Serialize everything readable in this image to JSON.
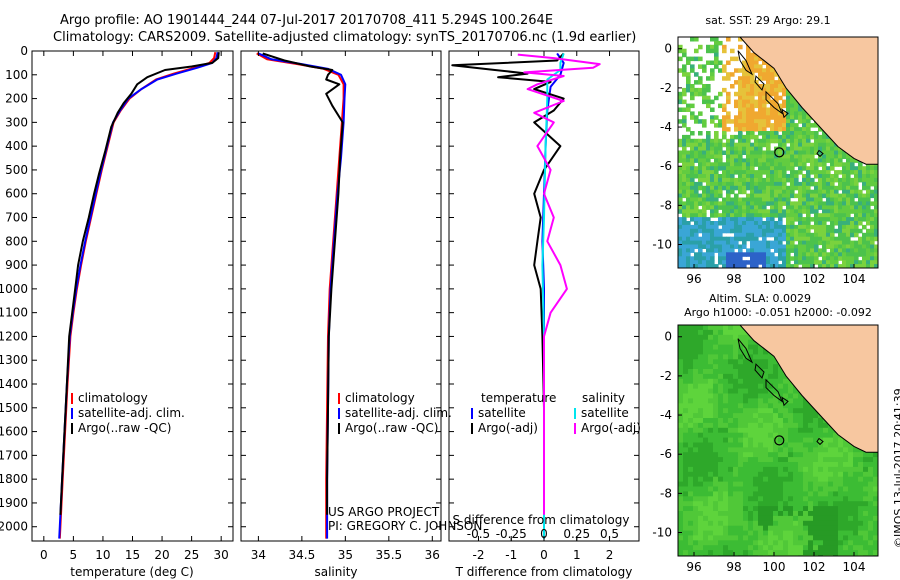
{
  "header": {
    "line1": "Argo profile: AO 1901444_244 07-Jul-2017 20170708_411 5.294S 100.264E",
    "line2": "Climatology: CARS2009. Satellite-adjusted climatology: synTS_20170706.nc (1.9d earlier)"
  },
  "colors": {
    "climatology": "#ff0000",
    "satellite": "#0000ff",
    "argo": "#000000",
    "sal_satellite": "#00e5ee",
    "sal_argo": "#ff00ff",
    "land": "#f7c7a0"
  },
  "chart_data": [
    {
      "type": "line",
      "name": "temperature-profile",
      "xlabel": "temperature (deg C)",
      "ylabel": "",
      "xlim": [
        -2,
        32
      ],
      "ylim": [
        2060,
        0
      ],
      "xticks": [
        0,
        5,
        10,
        15,
        20,
        25,
        30
      ],
      "yticks": [
        0,
        100,
        200,
        300,
        400,
        500,
        600,
        700,
        800,
        900,
        1000,
        1100,
        1200,
        1300,
        1400,
        1500,
        1600,
        1700,
        1800,
        1900,
        2000
      ],
      "legend": [
        "climatology",
        "satellite-adj. clim.",
        "Argo(..raw -QC)"
      ],
      "series": [
        {
          "name": "climatology",
          "points": [
            [
              29.0,
              5
            ],
            [
              28.8,
              30
            ],
            [
              28.0,
              50
            ],
            [
              25.5,
              70
            ],
            [
              22.0,
              95
            ],
            [
              19.0,
              120
            ],
            [
              16.5,
              160
            ],
            [
              14.5,
              200
            ],
            [
              13.0,
              250
            ],
            [
              11.8,
              300
            ],
            [
              10.8,
              400
            ],
            [
              9.8,
              500
            ],
            [
              8.9,
              600
            ],
            [
              8.0,
              700
            ],
            [
              7.1,
              800
            ],
            [
              6.3,
              900
            ],
            [
              5.6,
              1000
            ],
            [
              5.0,
              1100
            ],
            [
              4.5,
              1200
            ],
            [
              4.0,
              1400
            ],
            [
              3.6,
              1600
            ],
            [
              3.2,
              1800
            ],
            [
              2.8,
              2000
            ],
            [
              2.7,
              2050
            ]
          ]
        },
        {
          "name": "satellite",
          "points": [
            [
              29.4,
              5
            ],
            [
              29.2,
              30
            ],
            [
              28.5,
              50
            ],
            [
              26.0,
              70
            ],
            [
              22.5,
              95
            ],
            [
              19.2,
              120
            ],
            [
              16.5,
              160
            ],
            [
              14.3,
              200
            ],
            [
              12.9,
              250
            ],
            [
              11.7,
              300
            ],
            [
              10.7,
              400
            ],
            [
              9.7,
              500
            ],
            [
              8.8,
              600
            ],
            [
              7.9,
              700
            ],
            [
              7.0,
              800
            ],
            [
              6.2,
              900
            ],
            [
              5.5,
              1000
            ],
            [
              4.9,
              1100
            ],
            [
              4.4,
              1200
            ],
            [
              3.9,
              1400
            ],
            [
              3.5,
              1600
            ],
            [
              3.1,
              1800
            ],
            [
              2.7,
              2000
            ],
            [
              2.6,
              2050
            ]
          ]
        },
        {
          "name": "argo",
          "points": [
            [
              29.6,
              5
            ],
            [
              29.5,
              30
            ],
            [
              28.5,
              50
            ],
            [
              25.0,
              65
            ],
            [
              20.5,
              80
            ],
            [
              17.5,
              110
            ],
            [
              15.8,
              140
            ],
            [
              14.8,
              180
            ],
            [
              13.5,
              220
            ],
            [
              12.5,
              260
            ],
            [
              11.4,
              320
            ],
            [
              10.4,
              420
            ],
            [
              9.3,
              520
            ],
            [
              8.5,
              600
            ],
            [
              7.6,
              700
            ],
            [
              6.6,
              800
            ],
            [
              5.8,
              900
            ],
            [
              5.3,
              1000
            ],
            [
              4.8,
              1100
            ],
            [
              4.3,
              1200
            ],
            [
              3.9,
              1400
            ],
            [
              3.5,
              1600
            ],
            [
              3.1,
              1800
            ],
            [
              2.8,
              1950
            ]
          ]
        }
      ]
    },
    {
      "type": "line",
      "name": "salinity-profile",
      "xlabel": "salinity",
      "xlim": [
        33.8,
        36.1
      ],
      "ylim": [
        2060,
        0
      ],
      "xticks": [
        34,
        34.5,
        35,
        35.5,
        36
      ],
      "legend": [
        "climatology",
        "satellite-adj. clim.",
        "Argo(..raw -QC)"
      ],
      "series": [
        {
          "name": "climatology",
          "points": [
            [
              33.98,
              10
            ],
            [
              34.1,
              35
            ],
            [
              34.45,
              55
            ],
            [
              34.75,
              75
            ],
            [
              34.92,
              100
            ],
            [
              34.98,
              140
            ],
            [
              34.98,
              200
            ],
            [
              34.96,
              300
            ],
            [
              34.93,
              450
            ],
            [
              34.9,
              600
            ],
            [
              34.86,
              800
            ],
            [
              34.82,
              1000
            ],
            [
              34.8,
              1200
            ],
            [
              34.79,
              1500
            ],
            [
              34.78,
              1800
            ],
            [
              34.78,
              2050
            ]
          ]
        },
        {
          "name": "satellite",
          "points": [
            [
              34.0,
              10
            ],
            [
              34.15,
              35
            ],
            [
              34.5,
              55
            ],
            [
              34.8,
              75
            ],
            [
              34.95,
              100
            ],
            [
              35.0,
              140
            ],
            [
              34.99,
              200
            ],
            [
              34.98,
              300
            ],
            [
              34.95,
              450
            ],
            [
              34.91,
              600
            ],
            [
              34.87,
              800
            ],
            [
              34.83,
              1000
            ],
            [
              34.81,
              1200
            ],
            [
              34.8,
              1500
            ],
            [
              34.79,
              1800
            ],
            [
              34.79,
              2050
            ]
          ]
        },
        {
          "name": "argo",
          "points": [
            [
              34.05,
              10
            ],
            [
              34.3,
              40
            ],
            [
              34.6,
              65
            ],
            [
              34.85,
              80
            ],
            [
              34.8,
              100
            ],
            [
              34.78,
              120
            ],
            [
              34.93,
              140
            ],
            [
              34.78,
              180
            ],
            [
              34.85,
              230
            ],
            [
              34.97,
              300
            ],
            [
              34.94,
              450
            ],
            [
              34.92,
              600
            ],
            [
              34.88,
              800
            ],
            [
              34.84,
              1000
            ],
            [
              34.81,
              1200
            ],
            [
              34.8,
              1500
            ],
            [
              34.79,
              1800
            ],
            [
              34.79,
              1950
            ]
          ]
        }
      ],
      "annotations": [
        "US ARGO PROJECT",
        "PI: GREGORY C. JOHNSON"
      ]
    },
    {
      "type": "line",
      "name": "difference-from-climatology",
      "xlabel": "T difference from climatology",
      "x2label": "S difference from climatology",
      "xlim": [
        -2.9,
        2.9
      ],
      "ylim": [
        2060,
        0
      ],
      "xticks": [
        -2,
        -1,
        0,
        1,
        2
      ],
      "x2ticks": [
        -0.5,
        -0.25,
        0,
        0.25,
        0.5
      ],
      "x2ticklabels": [
        "-0.5",
        "-0.25",
        "0",
        "0.25",
        "0.5"
      ],
      "legend_temperature_title": "temperature",
      "legend_salinity_title": "salinity",
      "legend_labels": [
        "satellite",
        "Argo(-adj)",
        "satellite",
        "Argo(-adj)"
      ],
      "series": [
        {
          "name": "T satellite",
          "points": [
            [
              0.4,
              10
            ],
            [
              0.6,
              50
            ],
            [
              0.5,
              100
            ],
            [
              0.2,
              150
            ],
            [
              0.1,
              250
            ],
            [
              0.05,
              400
            ],
            [
              0.0,
              600
            ],
            [
              -0.05,
              800
            ],
            [
              0.0,
              1000
            ],
            [
              0.0,
              1500
            ],
            [
              0.0,
              2050
            ]
          ]
        },
        {
          "name": "T argo",
          "points": [
            [
              0.6,
              10
            ],
            [
              0.4,
              40
            ],
            [
              -2.8,
              60
            ],
            [
              -1.5,
              80
            ],
            [
              -0.5,
              95
            ],
            [
              -1.4,
              110
            ],
            [
              0.2,
              130
            ],
            [
              -0.3,
              160
            ],
            [
              0.6,
              200
            ],
            [
              0.3,
              250
            ],
            [
              -0.3,
              300
            ],
            [
              0.5,
              400
            ],
            [
              0.0,
              500
            ],
            [
              -0.3,
              600
            ],
            [
              -0.1,
              700
            ],
            [
              -0.2,
              800
            ],
            [
              -0.3,
              900
            ],
            [
              -0.1,
              1000
            ],
            [
              -0.05,
              1200
            ],
            [
              0.0,
              1500
            ],
            [
              0.0,
              1950
            ]
          ]
        },
        {
          "name": "S satellite",
          "points": [
            [
              0.6,
              10
            ],
            [
              0.5,
              50
            ],
            [
              0.5,
              80
            ],
            [
              0.1,
              120
            ],
            [
              0.1,
              200
            ],
            [
              0.05,
              400
            ],
            [
              0.0,
              700
            ],
            [
              -0.05,
              900
            ],
            [
              0.0,
              1200
            ],
            [
              0.0,
              1600
            ],
            [
              0.0,
              2050
            ]
          ]
        },
        {
          "name": "S argo",
          "points": [
            [
              -0.8,
              15
            ],
            [
              0.3,
              30
            ],
            [
              1.7,
              55
            ],
            [
              1.5,
              70
            ],
            [
              -0.6,
              90
            ],
            [
              0.6,
              105
            ],
            [
              -0.2,
              140
            ],
            [
              -0.5,
              160
            ],
            [
              0.6,
              210
            ],
            [
              -0.3,
              260
            ],
            [
              0.3,
              300
            ],
            [
              -0.2,
              400
            ],
            [
              0.2,
              500
            ],
            [
              0.0,
              600
            ],
            [
              0.3,
              700
            ],
            [
              0.1,
              800
            ],
            [
              0.5,
              900
            ],
            [
              0.7,
              1000
            ],
            [
              0.2,
              1100
            ],
            [
              0.0,
              1200
            ],
            [
              0.0,
              1500
            ],
            [
              0.0,
              1950
            ]
          ]
        }
      ]
    },
    {
      "type": "heatmap",
      "name": "sst-map",
      "title": "sat. SST: 29 Argo: 29.1",
      "xlim": [
        95.2,
        105.2
      ],
      "ylim": [
        -11.2,
        0.6
      ],
      "xticks": [
        96,
        98,
        100,
        102,
        104
      ],
      "yticks": [
        0,
        -2,
        -4,
        -6,
        -8,
        -10
      ],
      "float_position": [
        100.264,
        -5.294
      ]
    },
    {
      "type": "heatmap",
      "name": "sla-map",
      "title_line1": "Altim. SLA: 0.0029",
      "title_line2": "Argo h1000: -0.051 h2000: -0.092",
      "xlim": [
        95.2,
        105.2
      ],
      "ylim": [
        -11.2,
        0.6
      ],
      "xticks": [
        96,
        98,
        100,
        102,
        104
      ],
      "yticks": [
        0,
        -2,
        -4,
        -6,
        -8,
        -10
      ],
      "float_position": [
        100.264,
        -5.294
      ]
    }
  ],
  "footer": {
    "stamp": "©IMOS 13-Jul-2017 20:41:39"
  }
}
